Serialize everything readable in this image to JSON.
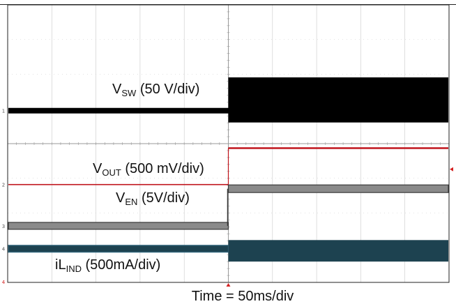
{
  "chart_data": {
    "type": "line",
    "title": "",
    "xlabel": "Time = 50ms/div",
    "grid": true,
    "divisions": {
      "x": 10,
      "y": 8
    },
    "colors": {
      "vsw": "#000000",
      "vout": "#c0141c",
      "ven": "#8a8a8a",
      "ven_edge": "#3a3a3a",
      "iind": "#1d4250",
      "iind_edge": "#3a6f86",
      "grid": "#c8c8c8",
      "grid_center": "#999999",
      "frame": "#222222",
      "trigger": "#d42020"
    },
    "series": [
      {
        "key": "vsw",
        "label_main": "V",
        "label_sub": "SW",
        "label_rest": " (50 V/div)",
        "marker": "1",
        "before": {
          "level_div": 4.95,
          "band_div": 0.16
        },
        "after": {
          "level_div": 5.26,
          "band_div": 1.3
        }
      },
      {
        "key": "vout",
        "label_main": "V",
        "label_sub": "OUT",
        "label_rest": " (500 mV/div)",
        "marker": "2",
        "before": {
          "level_div": 2.82,
          "band_div": 0.03
        },
        "after": {
          "level_div": 3.87,
          "band_div": 0.05
        }
      },
      {
        "key": "ven",
        "label_main": "V",
        "label_sub": "EN",
        "label_rest": " (5V/div)",
        "marker": "3",
        "before": {
          "level_div": 1.63,
          "band_div": 0.2
        },
        "after": {
          "level_div": 2.7,
          "band_div": 0.22
        }
      },
      {
        "key": "iind",
        "label_main": "iL",
        "label_sub": "IND",
        "label_rest": " (500mA/div)",
        "marker": "4",
        "before": {
          "level_div": 0.97,
          "band_div": 0.2
        },
        "after": {
          "level_div": 0.91,
          "band_div": 0.62
        }
      }
    ],
    "trigger_time_div": 5.0,
    "ground_marker": "4"
  }
}
